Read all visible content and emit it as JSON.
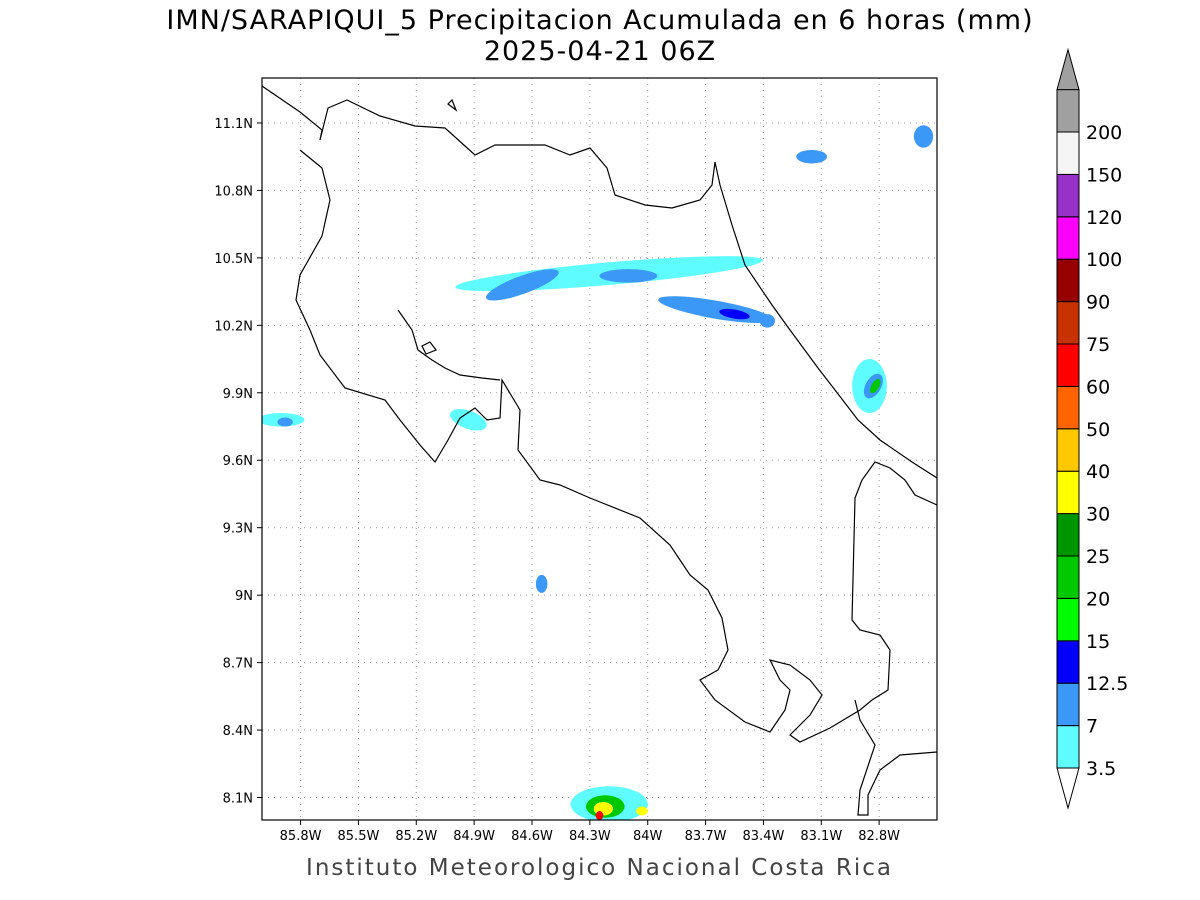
{
  "title": {
    "line1": "IMN/SARAPIQUI_5 Precipitacion Acumulada en 6 horas (mm)",
    "line2": "2025-04-21 06Z"
  },
  "footer": "Instituto Meteorologico Nacional Costa Rica",
  "map": {
    "lon_range": [
      -86.0,
      -82.5
    ],
    "lat_range": [
      8.0,
      11.3
    ],
    "lat_ticks": [
      {
        "value": 11.1,
        "label": "11.1N"
      },
      {
        "value": 10.8,
        "label": "10.8N"
      },
      {
        "value": 10.5,
        "label": "10.5N"
      },
      {
        "value": 10.2,
        "label": "10.2N"
      },
      {
        "value": 9.9,
        "label": "9.9N"
      },
      {
        "value": 9.6,
        "label": "9.6N"
      },
      {
        "value": 9.3,
        "label": "9.3N"
      },
      {
        "value": 9.0,
        "label": "9N"
      },
      {
        "value": 8.7,
        "label": "8.7N"
      },
      {
        "value": 8.4,
        "label": "8.4N"
      },
      {
        "value": 8.1,
        "label": "8.1N"
      }
    ],
    "lon_ticks": [
      {
        "value": -85.8,
        "label": "85.8W"
      },
      {
        "value": -85.5,
        "label": "85.5W"
      },
      {
        "value": -85.2,
        "label": "85.2W"
      },
      {
        "value": -84.9,
        "label": "84.9W"
      },
      {
        "value": -84.6,
        "label": "84.6W"
      },
      {
        "value": -84.3,
        "label": "84.3W"
      },
      {
        "value": -84.0,
        "label": "84W"
      },
      {
        "value": -83.7,
        "label": "83.7W"
      },
      {
        "value": -83.4,
        "label": "83.4W"
      },
      {
        "value": -83.1,
        "label": "83.1W"
      },
      {
        "value": -82.8,
        "label": "82.8W"
      }
    ],
    "grid": "dotted"
  },
  "legend": {
    "units": "mm",
    "levels": [
      {
        "label": "3.5",
        "color": "#5ffcff"
      },
      {
        "label": "7",
        "color": "#3c98f6"
      },
      {
        "label": "12.5",
        "color": "#0000fa"
      },
      {
        "label": "15",
        "color": "#00fa00"
      },
      {
        "label": "20",
        "color": "#00c800"
      },
      {
        "label": "25",
        "color": "#009600"
      },
      {
        "label": "30",
        "color": "#ffff00"
      },
      {
        "label": "40",
        "color": "#ffc800"
      },
      {
        "label": "50",
        "color": "#ff6400"
      },
      {
        "label": "60",
        "color": "#ff0000"
      },
      {
        "label": "75",
        "color": "#c83200"
      },
      {
        "label": "90",
        "color": "#960000"
      },
      {
        "label": "100",
        "color": "#fa00fa"
      },
      {
        "label": "120",
        "color": "#9632c8"
      },
      {
        "label": "150",
        "color": "#f5f5f5"
      },
      {
        "label": "200",
        "color": "#a0a0a0"
      }
    ]
  },
  "precip_cells": [
    {
      "lon": -84.2,
      "lat": 10.43,
      "rx_deg": 0.8,
      "ry_deg": 0.05,
      "level": "3.5",
      "rot": -5
    },
    {
      "lon": -84.65,
      "lat": 10.38,
      "rx_deg": 0.2,
      "ry_deg": 0.04,
      "level": "7",
      "rot": -20
    },
    {
      "lon": -84.1,
      "lat": 10.42,
      "rx_deg": 0.15,
      "ry_deg": 0.03,
      "level": "7",
      "rot": 0
    },
    {
      "lon": -83.65,
      "lat": 10.27,
      "rx_deg": 0.3,
      "ry_deg": 0.04,
      "level": "7",
      "rot": 10
    },
    {
      "lon": -83.55,
      "lat": 10.25,
      "rx_deg": 0.08,
      "ry_deg": 0.02,
      "level": "12.5",
      "rot": 10
    },
    {
      "lon": -83.38,
      "lat": 10.22,
      "rx_deg": 0.04,
      "ry_deg": 0.03,
      "level": "7",
      "rot": 0
    },
    {
      "lon": -82.85,
      "lat": 9.93,
      "rx_deg": 0.09,
      "ry_deg": 0.12,
      "level": "3.5",
      "rot": 0
    },
    {
      "lon": -82.83,
      "lat": 9.93,
      "rx_deg": 0.04,
      "ry_deg": 0.06,
      "level": "7",
      "rot": 30
    },
    {
      "lon": -82.82,
      "lat": 9.93,
      "rx_deg": 0.02,
      "ry_deg": 0.035,
      "level": "20",
      "rot": 30
    },
    {
      "lon": -85.9,
      "lat": 9.78,
      "rx_deg": 0.12,
      "ry_deg": 0.03,
      "level": "3.5",
      "rot": 0
    },
    {
      "lon": -85.88,
      "lat": 9.77,
      "rx_deg": 0.04,
      "ry_deg": 0.02,
      "level": "7",
      "rot": 0
    },
    {
      "lon": -84.93,
      "lat": 9.78,
      "rx_deg": 0.1,
      "ry_deg": 0.04,
      "level": "3.5",
      "rot": 20
    },
    {
      "lon": -82.57,
      "lat": 11.04,
      "rx_deg": 0.05,
      "ry_deg": 0.05,
      "level": "7",
      "rot": 0
    },
    {
      "lon": -83.15,
      "lat": 10.95,
      "rx_deg": 0.08,
      "ry_deg": 0.03,
      "level": "7",
      "rot": 0
    },
    {
      "lon": -84.55,
      "lat": 9.05,
      "rx_deg": 0.03,
      "ry_deg": 0.04,
      "level": "7",
      "rot": 0
    },
    {
      "lon": -84.2,
      "lat": 8.07,
      "rx_deg": 0.2,
      "ry_deg": 0.08,
      "level": "3.5",
      "rot": 0
    },
    {
      "lon": -84.22,
      "lat": 8.06,
      "rx_deg": 0.1,
      "ry_deg": 0.05,
      "level": "20",
      "rot": 0
    },
    {
      "lon": -84.23,
      "lat": 8.05,
      "rx_deg": 0.05,
      "ry_deg": 0.03,
      "level": "30",
      "rot": 0
    },
    {
      "lon": -84.25,
      "lat": 8.02,
      "rx_deg": 0.02,
      "ry_deg": 0.02,
      "level": "60",
      "rot": 0
    },
    {
      "lon": -84.03,
      "lat": 8.04,
      "rx_deg": 0.03,
      "ry_deg": 0.02,
      "level": "30",
      "rot": 0
    }
  ]
}
